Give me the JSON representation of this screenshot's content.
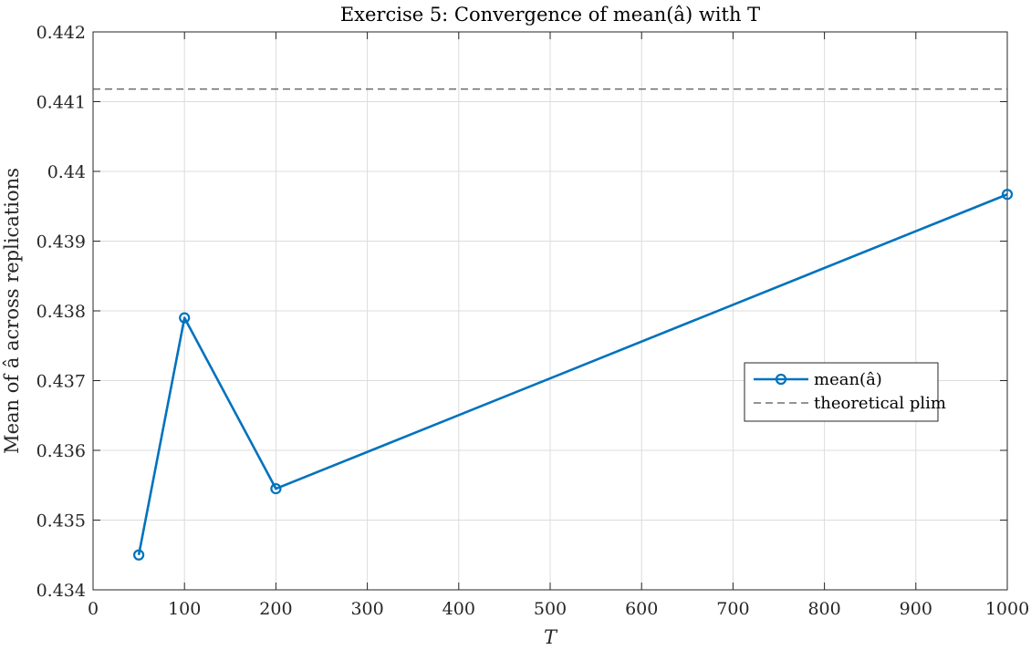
{
  "chart_data": {
    "type": "line",
    "title": "Exercise 5: Convergence of mean(â) with T",
    "xlabel": "T",
    "ylabel": "Mean of â across replications",
    "xlim": [
      0,
      1000
    ],
    "ylim": [
      0.434,
      0.442
    ],
    "xticks": [
      0,
      100,
      200,
      300,
      400,
      500,
      600,
      700,
      800,
      900,
      1000
    ],
    "xtick_labels": [
      "0",
      "100",
      "200",
      "300",
      "400",
      "500",
      "600",
      "700",
      "800",
      "900",
      "1000"
    ],
    "yticks": [
      0.434,
      0.435,
      0.436,
      0.437,
      0.438,
      0.439,
      0.44,
      0.441,
      0.442
    ],
    "ytick_labels": [
      "0.434",
      "0.435",
      "0.436",
      "0.437",
      "0.438",
      "0.439",
      "0.44",
      "0.441",
      "0.442"
    ],
    "grid": true,
    "legend_position": "right",
    "series": [
      {
        "name": "mean(â)",
        "color": "#0072BD",
        "marker": "circle",
        "x": [
          50,
          100,
          200,
          1000
        ],
        "y": [
          0.4345,
          0.4379,
          0.43545,
          0.43967
        ]
      }
    ],
    "reference_line": {
      "name": "theoretical plim",
      "color": "#555555",
      "style": "dashed",
      "y": 0.44118
    }
  }
}
